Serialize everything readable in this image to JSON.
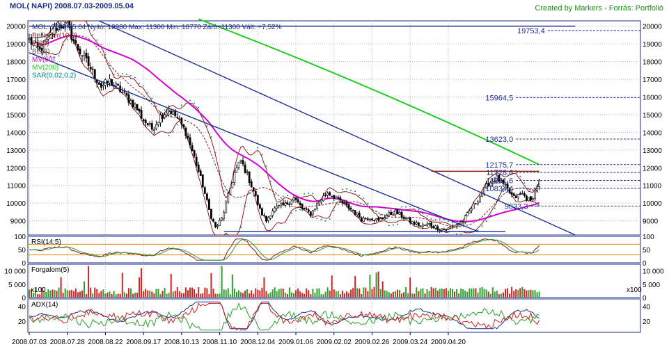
{
  "header": {
    "title": "MOL( NAPI)  2008.07.03-2009.05.04",
    "credit": "Created by Markers - Forrás: Portfolió"
  },
  "chart_data": {
    "type": "candlestick",
    "info_line": "MOL: 2009.05.04 Nyitó: 10980  Max: 11300  Min: 10770  Záró: 11300  Vált: +7,52%",
    "x_tick_labels": [
      "2008.07.03",
      "2008.07.28",
      "2008.08.22",
      "2008.09.17",
      "2008.10.13",
      "2008.11.10",
      "2008.12.04",
      "2009.01.06",
      "2009.02.02",
      "2009.02.26",
      "2009.03.24",
      "2009.04.20"
    ],
    "price_panel": {
      "ylim": [
        8200,
        20300
      ],
      "yticks": [
        9000,
        10000,
        11000,
        12000,
        13000,
        14000,
        15000,
        16000,
        17000,
        18000,
        19000,
        20000
      ],
      "legend": [
        "Bollinger(10;2)",
        "E(20)",
        "BE(3)",
        "MV(50)",
        "MV(200)",
        "SAR(0,02;0,2)"
      ],
      "legend_colors": [
        "#8b1a1a",
        "#8b1a1a",
        "#555555",
        "#d000d0",
        "#22cc22",
        "#0a8a8a"
      ],
      "fib_levels": [
        19753.4,
        15964.5,
        13623.0,
        12175.7,
        11728.6,
        11281.6,
        10834.4,
        9833.3
      ],
      "fib_labels": [
        "19753,4",
        "15964,5",
        "13623,0",
        "12175,7",
        "11728,6",
        "11281,6",
        "10834,4",
        "9833,3"
      ],
      "close_anchors": [
        [
          0,
          19200
        ],
        [
          5,
          18600
        ],
        [
          10,
          19500
        ],
        [
          14,
          20100
        ],
        [
          18,
          20000
        ],
        [
          22,
          18900
        ],
        [
          26,
          18200
        ],
        [
          30,
          17400
        ],
        [
          34,
          16600
        ],
        [
          38,
          16900
        ],
        [
          42,
          16500
        ],
        [
          46,
          16000
        ],
        [
          50,
          15500
        ],
        [
          54,
          14700
        ],
        [
          58,
          14200
        ],
        [
          62,
          14900
        ],
        [
          66,
          15300
        ],
        [
          70,
          14800
        ],
        [
          74,
          14000
        ],
        [
          78,
          12600
        ],
        [
          82,
          11000
        ],
        [
          85,
          9600
        ],
        [
          88,
          8600
        ],
        [
          91,
          9100
        ],
        [
          94,
          10400
        ],
        [
          97,
          11700
        ],
        [
          100,
          12400
        ],
        [
          103,
          11600
        ],
        [
          106,
          10700
        ],
        [
          109,
          9600
        ],
        [
          112,
          9000
        ],
        [
          115,
          9600
        ],
        [
          118,
          9800
        ],
        [
          121,
          9900
        ],
        [
          125,
          10300
        ],
        [
          129,
          9700
        ],
        [
          133,
          9400
        ],
        [
          137,
          10100
        ],
        [
          141,
          10600
        ],
        [
          145,
          10300
        ],
        [
          149,
          9900
        ],
        [
          153,
          9600
        ],
        [
          157,
          9100
        ],
        [
          161,
          9200
        ],
        [
          165,
          9000
        ],
        [
          169,
          9300
        ],
        [
          173,
          9500
        ],
        [
          177,
          9200
        ],
        [
          181,
          8900
        ],
        [
          185,
          8700
        ],
        [
          189,
          8800
        ],
        [
          193,
          8600
        ],
        [
          197,
          8500
        ],
        [
          201,
          8700
        ],
        [
          205,
          9000
        ],
        [
          209,
          9700
        ],
        [
          213,
          10400
        ],
        [
          217,
          11100
        ],
        [
          221,
          11400
        ],
        [
          225,
          10900
        ],
        [
          229,
          10300
        ],
        [
          233,
          10500
        ],
        [
          237,
          10100
        ],
        [
          241,
          11300
        ]
      ],
      "trend_lines": [
        {
          "color": "#1d2f8a",
          "from": [
            0,
            18500
          ],
          "to": [
            212,
            8400
          ]
        },
        {
          "color": "#1d2f8a",
          "from": [
            33,
            20300
          ],
          "to": [
            258,
            8200
          ]
        },
        {
          "color": "#1d2f8a",
          "from": [
            0,
            20000
          ],
          "to": [
            258,
            20000
          ]
        },
        {
          "color": "#1d2f8a",
          "from": [
            92,
            8400
          ],
          "to": [
            225,
            8400
          ]
        },
        {
          "color": "#8b1a1a",
          "from": [
            190,
            11800
          ],
          "to": [
            241,
            11800
          ]
        }
      ]
    },
    "rsi_panel": {
      "label": "RSI(14;5)",
      "ylim": [
        0,
        100
      ],
      "yticks": [
        0,
        50,
        100
      ],
      "levels": [
        30,
        70
      ]
    },
    "volume_panel": {
      "label": "Forgalom(5)",
      "ylim": [
        0,
        12500
      ],
      "yticks": [
        0,
        5000,
        10000
      ],
      "ytick_labels": [
        "0",
        "5 000",
        "10 000"
      ],
      "scale_note": "x100"
    },
    "adx_panel": {
      "label": "ADX(14)",
      "ylim": [
        5,
        50
      ],
      "yticks": [
        20,
        40
      ]
    },
    "colors": {
      "axis": "#1d2f8a",
      "candle": "#000000",
      "bollinger": "#8b1a1a",
      "mv50": "#d000d0",
      "mv200": "#22cc22",
      "sar": "#0a8a8a",
      "vol_up": "#2e9e2e",
      "vol_down": "#cc2222",
      "rsi_line": "#8b1a1a",
      "rsi_signal": "#2e9e2e",
      "adx": "#1d2f8a",
      "di_plus": "#2e9e2e",
      "di_minus": "#cc2222"
    }
  }
}
